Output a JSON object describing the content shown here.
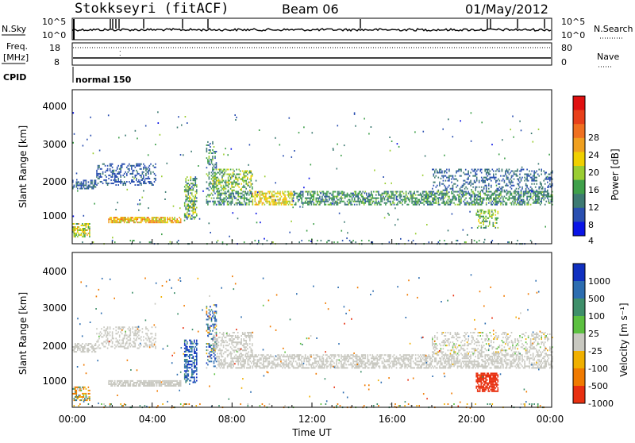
{
  "header": {
    "station": "Stokkseyri (fitACF)",
    "beam": "Beam 06",
    "date": "01/May/2012"
  },
  "top_panels": {
    "nsky_label": "N.Sky",
    "nsky_ticks_left": [
      "10^5",
      "10^0"
    ],
    "nsky_ticks_right": [
      "10^5",
      "10^0"
    ],
    "nsearch_label": "N.Search",
    "freq_label": "Freq.",
    "freq_unit": "[MHz]",
    "freq_ticks": [
      "18",
      "8"
    ],
    "nave_ticks": [
      "80",
      "0"
    ],
    "nave_label": "Nave",
    "cpid_label": "CPID",
    "cpid_value": "normal 150"
  },
  "power_panel": {
    "ylabel": "Slant Range [km]",
    "yticks": [
      "4000",
      "3000",
      "2000",
      "1000"
    ],
    "colorbar_label": "Power [dB]",
    "colorbar_ticks": [
      "28",
      "24",
      "20",
      "16",
      "12",
      "8",
      "4"
    ],
    "colors": [
      "#0a14e6",
      "#2a4fb0",
      "#3d7a72",
      "#3fa04a",
      "#9acd32",
      "#f0d000",
      "#f0a020",
      "#f07020",
      "#e8401a",
      "#e01010"
    ]
  },
  "velocity_panel": {
    "ylabel": "Slant Range [km]",
    "yticks": [
      "4000",
      "3000",
      "2000",
      "1000"
    ],
    "colorbar_label": "Velocity [m s⁻¹]",
    "colorbar_ticks": [
      "1000",
      "500",
      "100",
      "25",
      "-25",
      "-100",
      "-500",
      "-1000"
    ],
    "colors": [
      "#1030c0",
      "#2d6db0",
      "#3e8f6a",
      "#5cc040",
      "#c8c8c0",
      "#f0b000",
      "#f07a00",
      "#e83010"
    ]
  },
  "xaxis": {
    "ticks": [
      "00:00",
      "04:00",
      "08:00",
      "12:00",
      "16:00",
      "20:00",
      "00:00"
    ],
    "label": "Time UT"
  },
  "chart_data": {
    "type": "heatmap",
    "title": "Stokkseyri (fitACF)",
    "x_range_hours": [
      0,
      24
    ],
    "y_range_km": [
      180,
      4500
    ],
    "power_db_range": [
      0,
      30
    ],
    "velocity_range": [
      -1000,
      1000
    ],
    "bands": [
      {
        "name": "main_echo",
        "from_h": 5.5,
        "to_h": 24,
        "range_km": [
          1400,
          1800
        ],
        "power_db": 12,
        "velocity": 0
      },
      {
        "name": "morning_arc",
        "from_h": 0,
        "to_h": 4.5,
        "range_km": [
          1800,
          2600
        ],
        "power_db": 6,
        "velocity": 0
      },
      {
        "name": "lower_band",
        "from_h": 2,
        "to_h": 5,
        "range_km": [
          800,
          950
        ],
        "power_db": 20,
        "velocity": 0
      },
      {
        "name": "evening_red",
        "from_h": 20.2,
        "to_h": 21.3,
        "range_km": [
          650,
          1150
        ],
        "power_db": 8,
        "velocity": -900
      }
    ]
  }
}
